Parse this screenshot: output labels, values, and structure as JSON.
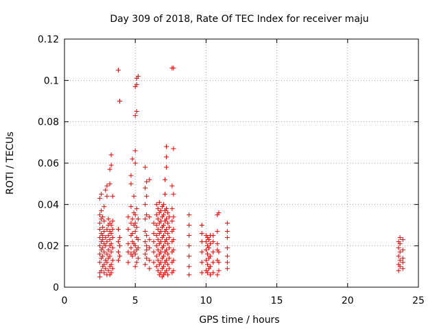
{
  "chart_data": {
    "type": "scatter",
    "title": "Day 309 of 2018, Rate Of TEC Index for receiver maju",
    "xlabel": "GPS time / hours",
    "ylabel": "ROTI / TECUs",
    "xlim": [
      0,
      25
    ],
    "ylim": [
      0,
      0.12
    ],
    "xticks": [
      0,
      5,
      10,
      15,
      20,
      25
    ],
    "xtick_labels": [
      "0",
      "5",
      "10",
      "15",
      "20",
      "25"
    ],
    "yticks": [
      0,
      0.02,
      0.04,
      0.06,
      0.08,
      0.1,
      0.12
    ],
    "ytick_labels": [
      "0",
      "0.02",
      "0.04",
      "0.06",
      "0.08",
      "0.1",
      "0.12"
    ],
    "grid": true,
    "marker": "+",
    "color": "#e00000",
    "series": [
      {
        "name": "ROTI",
        "points": [
          [
            2.5,
            0.007
          ],
          [
            2.5,
            0.012
          ],
          [
            2.5,
            0.016
          ],
          [
            2.5,
            0.02
          ],
          [
            2.5,
            0.024
          ],
          [
            2.5,
            0.028
          ],
          [
            2.5,
            0.031
          ],
          [
            2.5,
            0.035
          ],
          [
            2.5,
            0.043
          ],
          [
            2.5,
            0.005
          ],
          [
            2.6,
            0.008
          ],
          [
            2.6,
            0.014
          ],
          [
            2.6,
            0.018
          ],
          [
            2.6,
            0.022
          ],
          [
            2.6,
            0.026
          ],
          [
            2.6,
            0.033
          ],
          [
            2.6,
            0.037
          ],
          [
            2.6,
            0.045
          ],
          [
            2.7,
            0.01
          ],
          [
            2.7,
            0.015
          ],
          [
            2.7,
            0.019
          ],
          [
            2.7,
            0.023
          ],
          [
            2.7,
            0.025
          ],
          [
            2.7,
            0.029
          ],
          [
            2.7,
            0.034
          ],
          [
            2.8,
            0.007
          ],
          [
            2.8,
            0.011
          ],
          [
            2.8,
            0.017
          ],
          [
            2.8,
            0.021
          ],
          [
            2.8,
            0.027
          ],
          [
            2.8,
            0.032
          ],
          [
            2.8,
            0.039
          ],
          [
            2.9,
            0.009
          ],
          [
            2.9,
            0.013
          ],
          [
            2.9,
            0.02
          ],
          [
            2.9,
            0.024
          ],
          [
            2.9,
            0.047
          ],
          [
            3.0,
            0.006
          ],
          [
            3.0,
            0.012
          ],
          [
            3.0,
            0.016
          ],
          [
            3.0,
            0.022
          ],
          [
            3.0,
            0.028
          ],
          [
            3.0,
            0.044
          ],
          [
            3.0,
            0.049
          ],
          [
            3.1,
            0.008
          ],
          [
            3.1,
            0.014
          ],
          [
            3.1,
            0.018
          ],
          [
            3.1,
            0.025
          ],
          [
            3.1,
            0.03
          ],
          [
            3.1,
            0.033
          ],
          [
            3.2,
            0.006
          ],
          [
            3.2,
            0.01
          ],
          [
            3.2,
            0.015
          ],
          [
            3.2,
            0.02
          ],
          [
            3.2,
            0.023
          ],
          [
            3.2,
            0.027
          ],
          [
            3.2,
            0.031
          ],
          [
            3.2,
            0.05
          ],
          [
            3.2,
            0.057
          ],
          [
            3.3,
            0.007
          ],
          [
            3.3,
            0.011
          ],
          [
            3.3,
            0.017
          ],
          [
            3.3,
            0.021
          ],
          [
            3.3,
            0.026
          ],
          [
            3.3,
            0.03
          ],
          [
            3.3,
            0.059
          ],
          [
            3.3,
            0.064
          ],
          [
            3.4,
            0.009
          ],
          [
            3.4,
            0.013
          ],
          [
            3.4,
            0.019
          ],
          [
            3.4,
            0.024
          ],
          [
            3.4,
            0.028
          ],
          [
            3.4,
            0.032
          ],
          [
            3.4,
            0.044
          ],
          [
            3.8,
            0.013
          ],
          [
            3.8,
            0.017
          ],
          [
            3.8,
            0.022
          ],
          [
            3.8,
            0.028
          ],
          [
            3.8,
            0.105
          ],
          [
            3.9,
            0.015
          ],
          [
            3.9,
            0.02
          ],
          [
            3.9,
            0.024
          ],
          [
            3.9,
            0.09
          ],
          [
            4.5,
            0.012
          ],
          [
            4.5,
            0.017
          ],
          [
            4.5,
            0.021
          ],
          [
            4.5,
            0.028
          ],
          [
            4.5,
            0.034
          ],
          [
            4.7,
            0.016
          ],
          [
            4.7,
            0.019
          ],
          [
            4.7,
            0.025
          ],
          [
            4.7,
            0.031
          ],
          [
            4.7,
            0.039
          ],
          [
            4.7,
            0.05
          ],
          [
            4.7,
            0.054
          ],
          [
            4.8,
            0.015
          ],
          [
            4.8,
            0.022
          ],
          [
            4.8,
            0.026
          ],
          [
            4.8,
            0.033
          ],
          [
            4.8,
            0.062
          ],
          [
            4.9,
            0.017
          ],
          [
            4.9,
            0.021
          ],
          [
            4.9,
            0.03
          ],
          [
            4.9,
            0.036
          ],
          [
            4.9,
            0.044
          ],
          [
            5.0,
            0.01
          ],
          [
            5.0,
            0.016
          ],
          [
            5.0,
            0.02
          ],
          [
            5.0,
            0.027
          ],
          [
            5.0,
            0.031
          ],
          [
            5.0,
            0.035
          ],
          [
            5.0,
            0.06
          ],
          [
            5.0,
            0.066
          ],
          [
            5.0,
            0.083
          ],
          [
            5.0,
            0.097
          ],
          [
            5.1,
            0.012
          ],
          [
            5.1,
            0.018
          ],
          [
            5.1,
            0.024
          ],
          [
            5.1,
            0.029
          ],
          [
            5.1,
            0.038
          ],
          [
            5.1,
            0.085
          ],
          [
            5.1,
            0.098
          ],
          [
            5.1,
            0.101
          ],
          [
            5.2,
            0.014
          ],
          [
            5.2,
            0.019
          ],
          [
            5.2,
            0.023
          ],
          [
            5.2,
            0.033
          ],
          [
            5.2,
            0.102
          ],
          [
            5.7,
            0.011
          ],
          [
            5.7,
            0.016
          ],
          [
            5.7,
            0.022
          ],
          [
            5.7,
            0.027
          ],
          [
            5.7,
            0.033
          ],
          [
            5.7,
            0.04
          ],
          [
            5.7,
            0.048
          ],
          [
            5.7,
            0.058
          ],
          [
            5.8,
            0.014
          ],
          [
            5.8,
            0.018
          ],
          [
            5.8,
            0.02
          ],
          [
            5.8,
            0.025
          ],
          [
            5.8,
            0.035
          ],
          [
            5.8,
            0.044
          ],
          [
            5.8,
            0.051
          ],
          [
            6.0,
            0.009
          ],
          [
            6.0,
            0.013
          ],
          [
            6.0,
            0.019
          ],
          [
            6.0,
            0.023
          ],
          [
            6.0,
            0.034
          ],
          [
            6.0,
            0.052
          ],
          [
            6.3,
            0.012
          ],
          [
            6.3,
            0.017
          ],
          [
            6.3,
            0.022
          ],
          [
            6.3,
            0.026
          ],
          [
            6.3,
            0.031
          ],
          [
            6.5,
            0.01
          ],
          [
            6.5,
            0.015
          ],
          [
            6.5,
            0.02
          ],
          [
            6.5,
            0.025
          ],
          [
            6.5,
            0.03
          ],
          [
            6.5,
            0.035
          ],
          [
            6.5,
            0.04
          ],
          [
            6.6,
            0.008
          ],
          [
            6.6,
            0.013
          ],
          [
            6.6,
            0.018
          ],
          [
            6.6,
            0.023
          ],
          [
            6.6,
            0.028
          ],
          [
            6.6,
            0.033
          ],
          [
            6.6,
            0.038
          ],
          [
            6.7,
            0.006
          ],
          [
            6.7,
            0.011
          ],
          [
            6.7,
            0.016
          ],
          [
            6.7,
            0.021
          ],
          [
            6.7,
            0.026
          ],
          [
            6.7,
            0.031
          ],
          [
            6.7,
            0.036
          ],
          [
            6.7,
            0.041
          ],
          [
            6.8,
            0.007
          ],
          [
            6.8,
            0.012
          ],
          [
            6.8,
            0.017
          ],
          [
            6.8,
            0.022
          ],
          [
            6.8,
            0.027
          ],
          [
            6.8,
            0.032
          ],
          [
            6.8,
            0.037
          ],
          [
            6.9,
            0.005
          ],
          [
            6.9,
            0.009
          ],
          [
            6.9,
            0.014
          ],
          [
            6.9,
            0.019
          ],
          [
            6.9,
            0.024
          ],
          [
            6.9,
            0.029
          ],
          [
            6.9,
            0.034
          ],
          [
            6.9,
            0.039
          ],
          [
            7.0,
            0.006
          ],
          [
            7.0,
            0.01
          ],
          [
            7.0,
            0.015
          ],
          [
            7.0,
            0.02
          ],
          [
            7.0,
            0.025
          ],
          [
            7.0,
            0.03
          ],
          [
            7.0,
            0.035
          ],
          [
            7.0,
            0.04
          ],
          [
            7.1,
            0.007
          ],
          [
            7.1,
            0.012
          ],
          [
            7.1,
            0.017
          ],
          [
            7.1,
            0.022
          ],
          [
            7.1,
            0.027
          ],
          [
            7.1,
            0.032
          ],
          [
            7.1,
            0.037
          ],
          [
            7.1,
            0.045
          ],
          [
            7.1,
            0.052
          ],
          [
            7.2,
            0.008
          ],
          [
            7.2,
            0.013
          ],
          [
            7.2,
            0.018
          ],
          [
            7.2,
            0.023
          ],
          [
            7.2,
            0.028
          ],
          [
            7.2,
            0.033
          ],
          [
            7.2,
            0.038
          ],
          [
            7.2,
            0.058
          ],
          [
            7.2,
            0.063
          ],
          [
            7.2,
            0.068
          ],
          [
            7.3,
            0.006
          ],
          [
            7.3,
            0.011
          ],
          [
            7.3,
            0.016
          ],
          [
            7.3,
            0.021
          ],
          [
            7.3,
            0.026
          ],
          [
            7.3,
            0.031
          ],
          [
            7.3,
            0.036
          ],
          [
            7.4,
            0.009
          ],
          [
            7.4,
            0.014
          ],
          [
            7.4,
            0.019
          ],
          [
            7.4,
            0.024
          ],
          [
            7.4,
            0.029
          ],
          [
            7.4,
            0.034
          ],
          [
            7.6,
            0.007
          ],
          [
            7.6,
            0.012
          ],
          [
            7.6,
            0.017
          ],
          [
            7.6,
            0.022
          ],
          [
            7.6,
            0.027
          ],
          [
            7.6,
            0.032
          ],
          [
            7.6,
            0.038
          ],
          [
            7.6,
            0.049
          ],
          [
            7.6,
            0.106
          ],
          [
            7.7,
            0.008
          ],
          [
            7.7,
            0.013
          ],
          [
            7.7,
            0.018
          ],
          [
            7.7,
            0.023
          ],
          [
            7.7,
            0.028
          ],
          [
            7.7,
            0.034
          ],
          [
            7.7,
            0.045
          ],
          [
            7.7,
            0.067
          ],
          [
            7.7,
            0.106
          ],
          [
            8.8,
            0.006
          ],
          [
            8.8,
            0.01
          ],
          [
            8.8,
            0.015
          ],
          [
            8.8,
            0.02
          ],
          [
            8.8,
            0.025
          ],
          [
            8.8,
            0.03
          ],
          [
            8.8,
            0.035
          ],
          [
            9.7,
            0.007
          ],
          [
            9.7,
            0.012
          ],
          [
            9.7,
            0.017
          ],
          [
            9.7,
            0.022
          ],
          [
            9.7,
            0.026
          ],
          [
            9.7,
            0.03
          ],
          [
            10.0,
            0.008
          ],
          [
            10.0,
            0.013
          ],
          [
            10.0,
            0.018
          ],
          [
            10.0,
            0.022
          ],
          [
            10.0,
            0.025
          ],
          [
            10.1,
            0.007
          ],
          [
            10.1,
            0.011
          ],
          [
            10.1,
            0.016
          ],
          [
            10.1,
            0.02
          ],
          [
            10.1,
            0.024
          ],
          [
            10.2,
            0.009
          ],
          [
            10.2,
            0.014
          ],
          [
            10.2,
            0.019
          ],
          [
            10.2,
            0.023
          ],
          [
            10.3,
            0.006
          ],
          [
            10.3,
            0.01
          ],
          [
            10.3,
            0.015
          ],
          [
            10.3,
            0.021
          ],
          [
            10.3,
            0.025
          ],
          [
            10.5,
            0.007
          ],
          [
            10.5,
            0.012
          ],
          [
            10.5,
            0.017
          ],
          [
            10.5,
            0.022
          ],
          [
            10.5,
            0.025
          ],
          [
            10.8,
            0.006
          ],
          [
            10.8,
            0.013
          ],
          [
            10.8,
            0.018
          ],
          [
            10.8,
            0.021
          ],
          [
            10.8,
            0.027
          ],
          [
            10.8,
            0.035
          ],
          [
            10.9,
            0.008
          ],
          [
            10.9,
            0.012
          ],
          [
            10.9,
            0.017
          ],
          [
            10.9,
            0.036
          ],
          [
            11.5,
            0.009
          ],
          [
            11.5,
            0.012
          ],
          [
            11.5,
            0.015
          ],
          [
            11.5,
            0.019
          ],
          [
            11.5,
            0.024
          ],
          [
            11.5,
            0.027
          ],
          [
            11.5,
            0.031
          ],
          [
            23.6,
            0.008
          ],
          [
            23.6,
            0.011
          ],
          [
            23.6,
            0.015
          ],
          [
            23.6,
            0.019
          ],
          [
            23.6,
            0.022
          ],
          [
            23.7,
            0.01
          ],
          [
            23.7,
            0.013
          ],
          [
            23.7,
            0.017
          ],
          [
            23.7,
            0.021
          ],
          [
            23.7,
            0.024
          ],
          [
            23.9,
            0.009
          ],
          [
            23.9,
            0.012
          ],
          [
            23.9,
            0.014
          ],
          [
            23.9,
            0.018
          ],
          [
            23.9,
            0.023
          ]
        ]
      }
    ]
  }
}
